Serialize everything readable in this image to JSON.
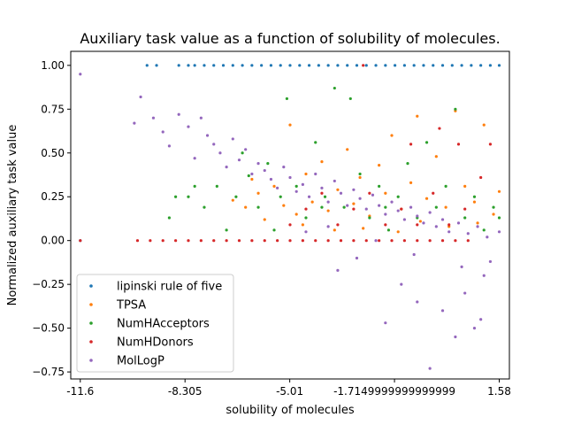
{
  "chart_data": {
    "type": "scatter",
    "title": "Auxiliary task value as a function of solubility of molecules.",
    "xlabel": "solubility of molecules",
    "ylabel": "Normalized auxiliary task value",
    "xlim": [
      -11.9,
      1.9
    ],
    "ylim": [
      -0.79,
      1.08
    ],
    "xticks": [
      -11.6,
      -8.305,
      -5.01,
      -1.7149999999999999,
      1.58
    ],
    "xtick_labels": [
      "-11.6",
      "-8.305",
      "-5.01",
      "-1.7149999999999999",
      "1.58"
    ],
    "yticks": [
      1.0,
      0.75,
      0.5,
      0.25,
      0.0,
      -0.25,
      -0.5,
      -0.75
    ],
    "ytick_labels": [
      "1.00",
      "0.75",
      "0.50",
      "0.25",
      "0.00",
      "−0.25",
      "−0.50",
      "−0.75"
    ],
    "grid": false,
    "legend_position": "lower-left",
    "series": [
      {
        "name": "lipinski rule of five",
        "color": "#1f77b4",
        "points": [
          [
            -11.6,
            0
          ],
          [
            -9.5,
            1
          ],
          [
            -9.2,
            1
          ],
          [
            -8.5,
            1
          ],
          [
            -8.2,
            1
          ],
          [
            -8.0,
            1
          ],
          [
            -7.7,
            1
          ],
          [
            -7.4,
            1
          ],
          [
            -7.1,
            1
          ],
          [
            -6.8,
            1
          ],
          [
            -6.5,
            1
          ],
          [
            -6.2,
            1
          ],
          [
            -5.9,
            1
          ],
          [
            -5.6,
            1
          ],
          [
            -5.3,
            1
          ],
          [
            -5.0,
            1
          ],
          [
            -4.7,
            1
          ],
          [
            -4.4,
            1
          ],
          [
            -4.1,
            1
          ],
          [
            -3.8,
            1
          ],
          [
            -3.5,
            1
          ],
          [
            -3.2,
            1
          ],
          [
            -2.9,
            1
          ],
          [
            -2.6,
            1
          ],
          [
            -2.3,
            1
          ],
          [
            -2.0,
            1
          ],
          [
            -1.7,
            1
          ],
          [
            -1.4,
            1
          ],
          [
            -1.1,
            1
          ],
          [
            -0.8,
            1
          ],
          [
            -0.5,
            1
          ],
          [
            -0.2,
            1
          ],
          [
            0.1,
            1
          ],
          [
            0.4,
            1
          ],
          [
            0.7,
            1
          ],
          [
            1.0,
            1
          ],
          [
            1.3,
            1
          ],
          [
            1.58,
            1
          ]
        ]
      },
      {
        "name": "TPSA",
        "color": "#ff7f0e",
        "points": [
          [
            -6.8,
            0.23
          ],
          [
            -6.4,
            0.19
          ],
          [
            -6.0,
            0.27
          ],
          [
            -5.8,
            0.12
          ],
          [
            -5.5,
            0.31
          ],
          [
            -5.2,
            0.2
          ],
          [
            -5.0,
            0.66
          ],
          [
            -4.8,
            0.15
          ],
          [
            -4.5,
            0.38
          ],
          [
            -4.3,
            0.22
          ],
          [
            -4.0,
            0.45
          ],
          [
            -3.8,
            0.17
          ],
          [
            -3.5,
            0.29
          ],
          [
            -3.2,
            0.52
          ],
          [
            -3.0,
            0.21
          ],
          [
            -2.8,
            0.36
          ],
          [
            -2.5,
            0.14
          ],
          [
            -2.2,
            0.43
          ],
          [
            -2.0,
            0.27
          ],
          [
            -1.8,
            0.6
          ],
          [
            -1.5,
            0.18
          ],
          [
            -1.2,
            0.33
          ],
          [
            -1.0,
            0.71
          ],
          [
            -0.7,
            0.24
          ],
          [
            -0.4,
            0.48
          ],
          [
            -0.1,
            0.19
          ],
          [
            0.2,
            0.74
          ],
          [
            0.5,
            0.31
          ],
          [
            0.8,
            0.22
          ],
          [
            1.1,
            0.66
          ],
          [
            1.4,
            0.15
          ],
          [
            1.58,
            0.28
          ],
          [
            -6.2,
            0.35
          ],
          [
            -4.6,
            0.09
          ],
          [
            -3.6,
            0.06
          ],
          [
            -2.7,
            0.07
          ],
          [
            -1.6,
            0.05
          ],
          [
            -0.9,
            0.11
          ],
          [
            0.0,
            0.08
          ],
          [
            0.9,
            0.1
          ]
        ]
      },
      {
        "name": "NumHAcceptors",
        "color": "#2ca02c",
        "points": [
          [
            -8.8,
            0.13
          ],
          [
            -8.6,
            0.25
          ],
          [
            -8.2,
            0.25
          ],
          [
            -8.0,
            0.31
          ],
          [
            -7.7,
            0.19
          ],
          [
            -7.3,
            0.31
          ],
          [
            -7.0,
            0.06
          ],
          [
            -6.7,
            0.25
          ],
          [
            -6.3,
            0.37
          ],
          [
            -6.0,
            0.19
          ],
          [
            -5.7,
            0.44
          ],
          [
            -5.3,
            0.25
          ],
          [
            -5.1,
            0.81
          ],
          [
            -4.8,
            0.31
          ],
          [
            -4.5,
            0.13
          ],
          [
            -4.2,
            0.56
          ],
          [
            -3.9,
            0.25
          ],
          [
            -3.6,
            0.87
          ],
          [
            -3.3,
            0.19
          ],
          [
            -3.1,
            0.81
          ],
          [
            -2.8,
            0.38
          ],
          [
            -2.5,
            0.13
          ],
          [
            -2.2,
            0.31
          ],
          [
            -1.9,
            0.06
          ],
          [
            -1.6,
            0.25
          ],
          [
            -1.3,
            0.44
          ],
          [
            -1.0,
            0.13
          ],
          [
            -0.7,
            0.56
          ],
          [
            -0.4,
            0.19
          ],
          [
            -0.1,
            0.31
          ],
          [
            0.2,
            0.75
          ],
          [
            0.5,
            0.13
          ],
          [
            0.8,
            0.25
          ],
          [
            1.1,
            0.06
          ],
          [
            1.4,
            0.19
          ],
          [
            1.58,
            0.13
          ],
          [
            -6.5,
            0.5
          ],
          [
            -5.5,
            0.06
          ],
          [
            -4.0,
            0.19
          ],
          [
            -2.0,
            0.19
          ]
        ]
      },
      {
        "name": "NumHDonors",
        "color": "#d62728",
        "points": [
          [
            -11.6,
            0
          ],
          [
            -9.8,
            0
          ],
          [
            -9.4,
            0
          ],
          [
            -9.0,
            0
          ],
          [
            -8.6,
            0
          ],
          [
            -8.2,
            0
          ],
          [
            -7.8,
            0
          ],
          [
            -7.4,
            0
          ],
          [
            -7.0,
            0
          ],
          [
            -6.6,
            0
          ],
          [
            -6.2,
            0
          ],
          [
            -5.8,
            0
          ],
          [
            -5.4,
            0
          ],
          [
            -5.0,
            0
          ],
          [
            -4.6,
            0
          ],
          [
            -4.2,
            0
          ],
          [
            -3.8,
            0
          ],
          [
            -3.4,
            0
          ],
          [
            -3.0,
            0
          ],
          [
            -2.6,
            0
          ],
          [
            -2.2,
            0
          ],
          [
            -1.8,
            0
          ],
          [
            -1.4,
            0
          ],
          [
            -1.0,
            0
          ],
          [
            -0.6,
            0
          ],
          [
            -0.2,
            0
          ],
          [
            0.2,
            0
          ],
          [
            0.6,
            0
          ],
          [
            -5.0,
            0.09
          ],
          [
            -4.5,
            0.18
          ],
          [
            -4.0,
            0.27
          ],
          [
            -3.5,
            0.09
          ],
          [
            -3.0,
            0.18
          ],
          [
            -2.5,
            0.27
          ],
          [
            -2.0,
            0.09
          ],
          [
            -1.5,
            0.18
          ],
          [
            -1.0,
            0.09
          ],
          [
            -0.5,
            0.27
          ],
          [
            0.0,
            0.09
          ],
          [
            0.5,
            0.18
          ],
          [
            1.0,
            0.36
          ],
          [
            1.3,
            0.55
          ],
          [
            -1.2,
            0.55
          ],
          [
            -0.3,
            0.64
          ],
          [
            0.3,
            0.55
          ],
          [
            -2.7,
            1.0
          ]
        ]
      },
      {
        "name": "MolLogP",
        "color": "#9467bd",
        "points": [
          [
            -11.6,
            0.95
          ],
          [
            -9.9,
            0.67
          ],
          [
            -9.7,
            0.82
          ],
          [
            -9.3,
            0.7
          ],
          [
            -9.0,
            0.62
          ],
          [
            -8.8,
            0.54
          ],
          [
            -8.5,
            0.72
          ],
          [
            -8.2,
            0.65
          ],
          [
            -8.0,
            0.47
          ],
          [
            -7.8,
            0.7
          ],
          [
            -7.6,
            0.6
          ],
          [
            -7.4,
            0.55
          ],
          [
            -7.2,
            0.5
          ],
          [
            -7.0,
            0.42
          ],
          [
            -6.8,
            0.58
          ],
          [
            -6.6,
            0.46
          ],
          [
            -6.4,
            0.52
          ],
          [
            -6.2,
            0.38
          ],
          [
            -6.0,
            0.44
          ],
          [
            -5.8,
            0.4
          ],
          [
            -5.6,
            0.35
          ],
          [
            -5.4,
            0.3
          ],
          [
            -5.2,
            0.42
          ],
          [
            -5.0,
            0.36
          ],
          [
            -4.8,
            0.28
          ],
          [
            -4.6,
            0.32
          ],
          [
            -4.4,
            0.25
          ],
          [
            -4.2,
            0.38
          ],
          [
            -4.0,
            0.3
          ],
          [
            -3.8,
            0.22
          ],
          [
            -3.6,
            0.34
          ],
          [
            -3.4,
            0.27
          ],
          [
            -3.2,
            0.2
          ],
          [
            -3.0,
            0.29
          ],
          [
            -2.8,
            0.24
          ],
          [
            -2.6,
            0.18
          ],
          [
            -2.4,
            0.26
          ],
          [
            -2.2,
            0.2
          ],
          [
            -2.0,
            0.15
          ],
          [
            -1.8,
            0.22
          ],
          [
            -1.6,
            0.17
          ],
          [
            -1.4,
            0.12
          ],
          [
            -1.2,
            0.19
          ],
          [
            -1.0,
            0.14
          ],
          [
            -0.8,
            0.1
          ],
          [
            -0.6,
            0.16
          ],
          [
            -0.4,
            0.08
          ],
          [
            -0.2,
            0.12
          ],
          [
            0.0,
            0.05
          ],
          [
            0.3,
            0.1
          ],
          [
            0.6,
            0.04
          ],
          [
            0.9,
            0.08
          ],
          [
            1.2,
            0.02
          ],
          [
            1.58,
            0.05
          ],
          [
            -3.5,
            -0.17
          ],
          [
            -2.9,
            -0.1
          ],
          [
            -2.0,
            -0.47
          ],
          [
            -1.5,
            -0.25
          ],
          [
            -1.0,
            -0.35
          ],
          [
            -0.6,
            -0.73
          ],
          [
            -0.2,
            -0.4
          ],
          [
            0.2,
            -0.55
          ],
          [
            0.5,
            -0.3
          ],
          [
            0.8,
            -0.5
          ],
          [
            1.0,
            -0.45
          ],
          [
            1.3,
            -0.12
          ],
          [
            -4.5,
            0.05
          ],
          [
            -3.8,
            0.08
          ],
          [
            -2.3,
            0.0
          ],
          [
            -1.1,
            -0.08
          ],
          [
            0.4,
            -0.15
          ],
          [
            1.1,
            -0.2
          ]
        ]
      }
    ]
  }
}
